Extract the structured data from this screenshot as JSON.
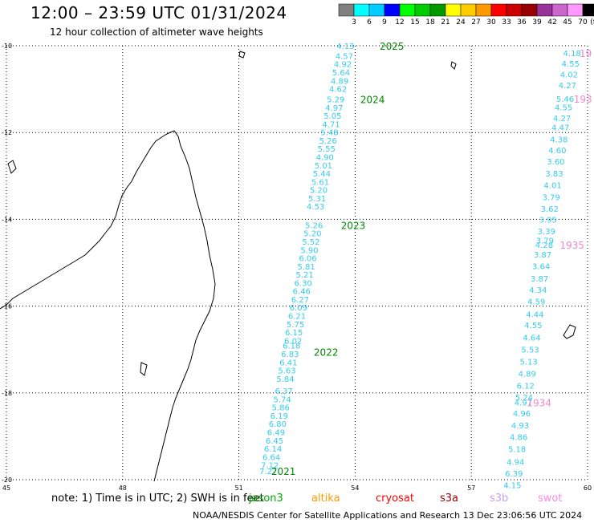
{
  "header": {
    "title": "12:00 – 23:59 UTC 01/31/2024",
    "subtitle": "12 hour collection of altimeter wave heights"
  },
  "colorbar": {
    "unit": "(ft)",
    "ticks": [
      "3",
      "6",
      "9",
      "12",
      "15",
      "18",
      "21",
      "24",
      "27",
      "30",
      "33",
      "36",
      "39",
      "42",
      "45",
      "70"
    ],
    "colors": [
      "#808080",
      "#00ffff",
      "#00ccff",
      "#0000ff",
      "#00ff00",
      "#00cc00",
      "#009900",
      "#ffff00",
      "#ffcc00",
      "#ff9900",
      "#ff0000",
      "#cc0000",
      "#990000",
      "#993399",
      "#cc66cc",
      "#ff99ff",
      "#000000"
    ]
  },
  "map": {
    "lon_range": [
      45,
      60
    ],
    "lat_range": [
      -20,
      -10
    ],
    "lat_labels": [
      "-10",
      "-12",
      "-14",
      "-16",
      "-18",
      "-20"
    ],
    "lon_labels": [
      "45",
      "48",
      "51",
      "54",
      "57",
      "60"
    ],
    "grid": "dotted"
  },
  "tracks": [
    {
      "satellite": "jason3",
      "color": "#33ccee",
      "points": [
        {
          "lon": 53.75,
          "lat": -10.0,
          "swh": "4.13"
        },
        {
          "lon": 53.72,
          "lat": -10.23,
          "swh": "4.57"
        },
        {
          "lon": 53.68,
          "lat": -10.42,
          "swh": "4.92"
        },
        {
          "lon": 53.64,
          "lat": -10.61,
          "swh": "5.64"
        },
        {
          "lon": 53.6,
          "lat": -10.8,
          "swh": "4.89"
        },
        {
          "lon": 53.56,
          "lat": -10.99,
          "swh": "4.62"
        },
        {
          "lon": 53.5,
          "lat": -11.23,
          "swh": "5.29"
        },
        {
          "lon": 53.46,
          "lat": -11.42,
          "swh": "4.97"
        },
        {
          "lon": 53.42,
          "lat": -11.61,
          "swh": "5.05"
        },
        {
          "lon": 53.38,
          "lat": -11.8,
          "swh": "4.71"
        },
        {
          "lon": 53.34,
          "lat": -11.99,
          "swh": "5.48"
        },
        {
          "lon": 53.3,
          "lat": -12.18,
          "swh": "5.26"
        },
        {
          "lon": 53.26,
          "lat": -12.37,
          "swh": "5.55"
        },
        {
          "lon": 53.22,
          "lat": -12.56,
          "swh": "4.90"
        },
        {
          "lon": 53.18,
          "lat": -12.75,
          "swh": "5.01"
        },
        {
          "lon": 53.14,
          "lat": -12.94,
          "swh": "5.44"
        },
        {
          "lon": 53.1,
          "lat": -13.13,
          "swh": "5.61"
        },
        {
          "lon": 53.06,
          "lat": -13.32,
          "swh": "5.20"
        },
        {
          "lon": 53.02,
          "lat": -13.51,
          "swh": "5.31"
        },
        {
          "lon": 52.98,
          "lat": -13.7,
          "swh": "4.53"
        },
        {
          "lon": 52.94,
          "lat": -14.13,
          "swh": "5.26"
        },
        {
          "lon": 52.9,
          "lat": -14.32,
          "swh": "5.20"
        },
        {
          "lon": 52.86,
          "lat": -14.51,
          "swh": "5.52"
        },
        {
          "lon": 52.82,
          "lat": -14.7,
          "swh": "5.90"
        },
        {
          "lon": 52.78,
          "lat": -14.89,
          "swh": "6.06"
        },
        {
          "lon": 52.74,
          "lat": -15.08,
          "swh": "5.81"
        },
        {
          "lon": 52.7,
          "lat": -15.27,
          "swh": "5.21"
        },
        {
          "lon": 52.66,
          "lat": -15.46,
          "swh": "6.30"
        },
        {
          "lon": 52.62,
          "lat": -15.65,
          "swh": "6.46"
        },
        {
          "lon": 52.58,
          "lat": -15.84,
          "swh": "6.27"
        },
        {
          "lon": 52.54,
          "lat": -16.03,
          "swh": "6.09"
        },
        {
          "lon": 52.5,
          "lat": -16.22,
          "swh": "6.21"
        },
        {
          "lon": 52.46,
          "lat": -16.41,
          "swh": "5.75"
        },
        {
          "lon": 52.42,
          "lat": -16.6,
          "swh": "6.15"
        },
        {
          "lon": 52.4,
          "lat": -16.79,
          "swh": "6.02"
        },
        {
          "lon": 52.36,
          "lat": -16.9,
          "swh": "6.18"
        },
        {
          "lon": 52.32,
          "lat": -17.1,
          "swh": "6.83"
        },
        {
          "lon": 52.28,
          "lat": -17.29,
          "swh": "6.41"
        },
        {
          "lon": 52.24,
          "lat": -17.48,
          "swh": "5.63"
        },
        {
          "lon": 52.2,
          "lat": -17.67,
          "swh": "5.84"
        },
        {
          "lon": 52.16,
          "lat": -17.95,
          "swh": "6.37"
        },
        {
          "lon": 52.12,
          "lat": -18.14,
          "swh": "5.74"
        },
        {
          "lon": 52.08,
          "lat": -18.33,
          "swh": "5.86"
        },
        {
          "lon": 52.04,
          "lat": -18.52,
          "swh": "6.19"
        },
        {
          "lon": 52.0,
          "lat": -18.71,
          "swh": "6.80"
        },
        {
          "lon": 51.96,
          "lat": -18.9,
          "swh": "6.49"
        },
        {
          "lon": 51.92,
          "lat": -19.09,
          "swh": "6.45"
        },
        {
          "lon": 51.88,
          "lat": -19.28,
          "swh": "6.14"
        },
        {
          "lon": 51.84,
          "lat": -19.47,
          "swh": "6.64"
        },
        {
          "lon": 51.8,
          "lat": -19.66,
          "swh": "7.12"
        },
        {
          "lon": 51.76,
          "lat": -19.8,
          "swh": "7.27"
        }
      ],
      "time_labels": [
        {
          "lon": 54.95,
          "lat": -10.0,
          "text": "2025"
        },
        {
          "lon": 54.45,
          "lat": -11.23,
          "text": "2024"
        },
        {
          "lon": 53.95,
          "lat": -14.13,
          "text": "2023"
        },
        {
          "lon": 53.25,
          "lat": -17.05,
          "text": "2022"
        },
        {
          "lon": 52.15,
          "lat": -19.8,
          "text": "2021"
        }
      ]
    },
    {
      "satellite": "jason3",
      "color": "#33ccee",
      "points": [
        {
          "lon": 59.6,
          "lat": -10.17,
          "swh": "4.18"
        },
        {
          "lon": 59.56,
          "lat": -10.41,
          "swh": "4.55"
        },
        {
          "lon": 59.52,
          "lat": -10.66,
          "swh": "4.02"
        },
        {
          "lon": 59.48,
          "lat": -10.91,
          "swh": "4.27"
        },
        {
          "lon": 59.42,
          "lat": -11.22,
          "swh": "5.46"
        },
        {
          "lon": 59.38,
          "lat": -11.41,
          "swh": "4.55"
        },
        {
          "lon": 59.34,
          "lat": -11.66,
          "swh": "4.27"
        },
        {
          "lon": 59.3,
          "lat": -11.88,
          "swh": "4.47"
        },
        {
          "lon": 59.26,
          "lat": -12.15,
          "swh": "4.38"
        },
        {
          "lon": 59.22,
          "lat": -12.4,
          "swh": "4.60"
        },
        {
          "lon": 59.18,
          "lat": -12.66,
          "swh": "3.60"
        },
        {
          "lon": 59.14,
          "lat": -12.94,
          "swh": "3.83"
        },
        {
          "lon": 59.1,
          "lat": -13.21,
          "swh": "4.01"
        },
        {
          "lon": 59.06,
          "lat": -13.48,
          "swh": "3.79"
        },
        {
          "lon": 59.02,
          "lat": -13.75,
          "swh": "3.62"
        },
        {
          "lon": 58.98,
          "lat": -14.0,
          "swh": "3.95"
        },
        {
          "lon": 58.94,
          "lat": -14.27,
          "swh": "3.39"
        },
        {
          "lon": 58.9,
          "lat": -14.48,
          "swh": "3.79"
        },
        {
          "lon": 58.88,
          "lat": -14.58,
          "swh": "4.28"
        },
        {
          "lon": 58.84,
          "lat": -14.81,
          "swh": "3.87"
        },
        {
          "lon": 58.8,
          "lat": -15.07,
          "swh": "3.64"
        },
        {
          "lon": 58.76,
          "lat": -15.36,
          "swh": "3.87"
        },
        {
          "lon": 58.72,
          "lat": -15.62,
          "swh": "4.34"
        },
        {
          "lon": 58.68,
          "lat": -15.89,
          "swh": "4.59"
        },
        {
          "lon": 58.64,
          "lat": -16.18,
          "swh": "4.44"
        },
        {
          "lon": 58.6,
          "lat": -16.43,
          "swh": "4.55"
        },
        {
          "lon": 58.56,
          "lat": -16.72,
          "swh": "4.64"
        },
        {
          "lon": 58.52,
          "lat": -17.0,
          "swh": "5.53"
        },
        {
          "lon": 58.48,
          "lat": -17.27,
          "swh": "5.13"
        },
        {
          "lon": 58.44,
          "lat": -17.55,
          "swh": "4.89"
        },
        {
          "lon": 58.4,
          "lat": -17.83,
          "swh": "6.12"
        },
        {
          "lon": 58.36,
          "lat": -18.1,
          "swh": "5.24"
        },
        {
          "lon": 58.34,
          "lat": -18.22,
          "swh": "4.97"
        },
        {
          "lon": 58.3,
          "lat": -18.47,
          "swh": "4.96"
        },
        {
          "lon": 58.26,
          "lat": -18.74,
          "swh": "4.93"
        },
        {
          "lon": 58.22,
          "lat": -19.01,
          "swh": "4.86"
        },
        {
          "lon": 58.18,
          "lat": -19.29,
          "swh": "5.18"
        },
        {
          "lon": 58.14,
          "lat": -19.58,
          "swh": "4.94"
        },
        {
          "lon": 58.1,
          "lat": -19.85,
          "swh": "6.39"
        },
        {
          "lon": 58.06,
          "lat": -20.12,
          "swh": "4.15"
        }
      ],
      "time_labels": []
    }
  ],
  "pink_labels": [
    {
      "lon": 59.95,
      "lat": -10.17,
      "text": "19"
    },
    {
      "lon": 59.88,
      "lat": -11.22,
      "text": "193"
    },
    {
      "lon": 59.6,
      "lat": -14.58,
      "text": "1935"
    },
    {
      "lon": 58.75,
      "lat": -18.22,
      "text": "1934"
    }
  ],
  "footer": {
    "note": "note:  1) Time is in UTC;  2) SWH is in feet",
    "satellites": [
      {
        "name": "jason3",
        "color": "#00aa00"
      },
      {
        "name": "altika",
        "color": "#ff9900"
      },
      {
        "name": "cryosat",
        "color": "#ff0000"
      },
      {
        "name": "s3a",
        "color": "#990000"
      },
      {
        "name": "s3b",
        "color": "#c8a0ee"
      },
      {
        "name": "swot",
        "color": "#ff88dd"
      }
    ],
    "credit": "NOAA/NESDIS Center for Satellite Applications and Research    13 Dec 23:06:56 UTC 2024"
  }
}
